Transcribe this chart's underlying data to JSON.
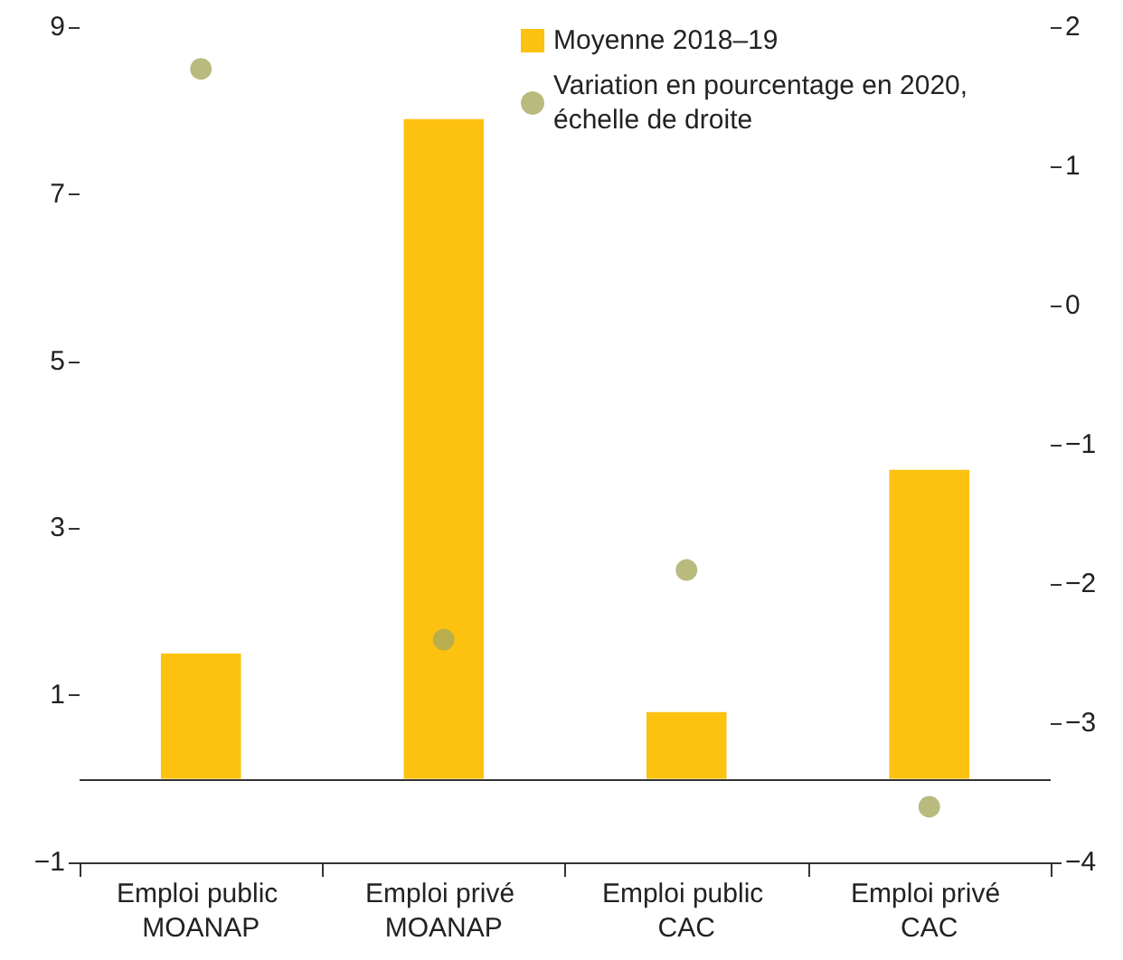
{
  "chart_data": {
    "type": "bar",
    "categories": [
      "Emploi public MOANAP",
      "Emploi privé MOANAP",
      "Emploi public CAC",
      "Emploi privé CAC"
    ],
    "series": [
      {
        "name": "Moyenne 2018–19",
        "color": "#fdc20f",
        "values": [
          1.5,
          7.9,
          0.8,
          3.7
        ]
      },
      {
        "name": "Variation en pourcentage en 2020, échelle de droite",
        "type": "scatter",
        "axis": "y2",
        "color": "#a8aa5e",
        "values": [
          1.7,
          -2.4,
          -1.9,
          -3.6
        ]
      }
    ],
    "ylim": [
      -1,
      9
    ],
    "yticks": [
      -1,
      1,
      3,
      5,
      7,
      9
    ],
    "y2lim": [
      -4,
      2
    ],
    "y2ticks": [
      -4,
      -3,
      -2,
      -1,
      0,
      1,
      2
    ],
    "ref_lines": [
      {
        "axis": "y",
        "value": 0
      }
    ],
    "grid": false,
    "legend": "top right",
    "marker": "circle"
  }
}
